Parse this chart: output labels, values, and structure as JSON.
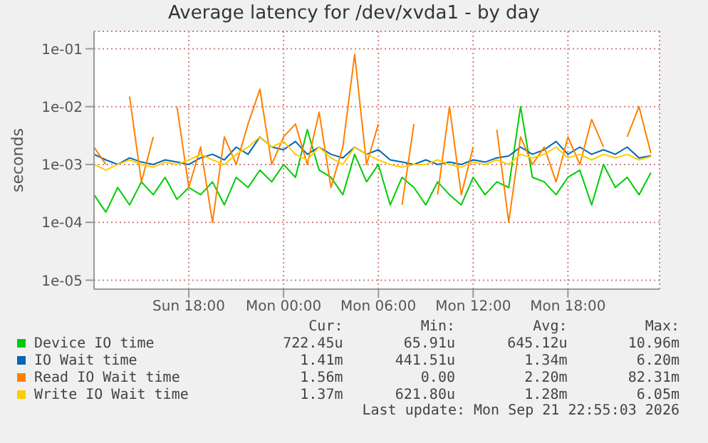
{
  "chart_data": {
    "type": "line",
    "title": "Average latency for /dev/xvda1 - by day",
    "ylabel": "seconds",
    "log": "y",
    "grid": true,
    "legend": "bottom",
    "marker": "none",
    "line_style": "solid",
    "xlim": [
      "2026-09-20T12:00",
      "2026-09-21T23:48"
    ],
    "ylim": [
      7e-06,
      0.2
    ],
    "xticks": [
      {
        "value": "2026-09-20T18:00",
        "label": "Sun 18:00"
      },
      {
        "value": "2026-09-21T00:00",
        "label": "Mon 00:00"
      },
      {
        "value": "2026-09-21T06:00",
        "label": "Mon 06:00"
      },
      {
        "value": "2026-09-21T12:00",
        "label": "Mon 12:00"
      },
      {
        "value": "2026-09-21T18:00",
        "label": "Mon 18:00"
      }
    ],
    "yticks": [
      {
        "value": 1e-05,
        "label": "1e-05"
      },
      {
        "value": 0.0001,
        "label": "1e-04"
      },
      {
        "value": 0.001,
        "label": "1e-03"
      },
      {
        "value": 0.01,
        "label": "1e-02"
      },
      {
        "value": 0.1,
        "label": "1e-01"
      }
    ],
    "x": [
      "2026-09-20T12:00",
      "2026-09-20T12:45",
      "2026-09-20T13:30",
      "2026-09-20T14:15",
      "2026-09-20T15:00",
      "2026-09-20T15:45",
      "2026-09-20T16:30",
      "2026-09-20T17:15",
      "2026-09-20T18:00",
      "2026-09-20T18:45",
      "2026-09-20T19:30",
      "2026-09-20T20:15",
      "2026-09-20T21:00",
      "2026-09-20T21:45",
      "2026-09-20T22:30",
      "2026-09-20T23:15",
      "2026-09-21T00:00",
      "2026-09-21T00:45",
      "2026-09-21T01:30",
      "2026-09-21T02:15",
      "2026-09-21T03:00",
      "2026-09-21T03:45",
      "2026-09-21T04:30",
      "2026-09-21T05:15",
      "2026-09-21T06:00",
      "2026-09-21T06:45",
      "2026-09-21T07:30",
      "2026-09-21T08:15",
      "2026-09-21T09:00",
      "2026-09-21T09:45",
      "2026-09-21T10:30",
      "2026-09-21T11:15",
      "2026-09-21T12:00",
      "2026-09-21T12:45",
      "2026-09-21T13:30",
      "2026-09-21T14:15",
      "2026-09-21T15:00",
      "2026-09-21T15:45",
      "2026-09-21T16:30",
      "2026-09-21T17:15",
      "2026-09-21T18:00",
      "2026-09-21T18:45",
      "2026-09-21T19:30",
      "2026-09-21T20:15",
      "2026-09-21T21:00",
      "2026-09-21T21:45",
      "2026-09-21T22:30",
      "2026-09-21T23:15"
    ],
    "series": [
      {
        "name": "Device IO time",
        "color": "#00cc00",
        "values": [
          0.0003,
          0.00015,
          0.0004,
          0.0002,
          0.0005,
          0.0003,
          0.0006,
          0.00025,
          0.0004,
          0.0003,
          0.0005,
          0.0002,
          0.0006,
          0.0004,
          0.0008,
          0.0005,
          0.001,
          0.0006,
          0.004,
          0.0008,
          0.0006,
          0.0003,
          0.0015,
          0.0005,
          0.001,
          0.0002,
          0.0006,
          0.0004,
          0.0002,
          0.0005,
          0.0003,
          0.0002,
          0.0006,
          0.0003,
          0.0005,
          0.0004,
          0.01,
          0.0006,
          0.0005,
          0.0003,
          0.0006,
          0.0008,
          0.0002,
          0.001,
          0.0004,
          0.0006,
          0.0003,
          0.00072
        ]
      },
      {
        "name": "IO Wait time",
        "color": "#0066b3",
        "values": [
          0.0015,
          0.0012,
          0.001,
          0.0013,
          0.0011,
          0.001,
          0.0012,
          0.0011,
          0.001,
          0.0013,
          0.0015,
          0.0012,
          0.002,
          0.0015,
          0.003,
          0.002,
          0.0018,
          0.0025,
          0.0015,
          0.002,
          0.0015,
          0.0013,
          0.002,
          0.0015,
          0.0018,
          0.0012,
          0.0011,
          0.001,
          0.0012,
          0.001,
          0.0011,
          0.001,
          0.0012,
          0.0011,
          0.0013,
          0.0014,
          0.002,
          0.0015,
          0.0018,
          0.0025,
          0.0015,
          0.002,
          0.0015,
          0.0018,
          0.0015,
          0.002,
          0.0013,
          0.00141
        ]
      },
      {
        "name": "Read IO Wait time",
        "color": "#ff8000",
        "values": [
          0.002,
          0.001,
          null,
          0.015,
          0.0005,
          0.003,
          null,
          0.01,
          0.0004,
          0.002,
          0.0001,
          0.003,
          0.001,
          0.005,
          0.02,
          0.001,
          0.003,
          0.005,
          0.001,
          0.008,
          0.0004,
          0.002,
          0.08,
          0.001,
          0.005,
          null,
          0.0002,
          0.005,
          null,
          0.0003,
          0.01,
          0.0003,
          0.002,
          null,
          0.004,
          0.0001,
          0.003,
          0.001,
          0.002,
          0.0005,
          0.003,
          0.001,
          0.006,
          0.002,
          null,
          0.003,
          0.01,
          0.00156
        ]
      },
      {
        "name": "Write IO Wait time",
        "color": "#ffcc00",
        "values": [
          0.001,
          0.0008,
          0.001,
          0.0012,
          0.001,
          0.0009,
          0.0011,
          0.001,
          0.0012,
          0.0015,
          0.0012,
          0.001,
          0.0015,
          0.002,
          0.003,
          0.002,
          0.0025,
          0.0015,
          0.0012,
          0.002,
          0.0013,
          0.001,
          0.002,
          0.0015,
          0.0012,
          0.001,
          0.0009,
          0.001,
          0.001,
          0.0012,
          0.001,
          0.0009,
          0.0011,
          0.001,
          0.0012,
          0.001,
          0.0015,
          0.0013,
          0.0015,
          0.002,
          0.0013,
          0.0015,
          0.0012,
          0.0015,
          0.0013,
          0.0015,
          0.0012,
          0.00137
        ]
      }
    ],
    "annotations": [
      "Cur:",
      "Min:",
      "Avg:",
      "Max:",
      "722.45u",
      "65.91u",
      "645.12u",
      "10.96m",
      "1.41m",
      "441.51u",
      "1.34m",
      "6.20m",
      "1.56m",
      "0.00",
      "2.20m",
      "82.31m",
      "1.37m",
      "621.80u",
      "1.28m",
      "6.05m",
      "Last update: Mon Sep 21 22:55:03 2026"
    ]
  }
}
